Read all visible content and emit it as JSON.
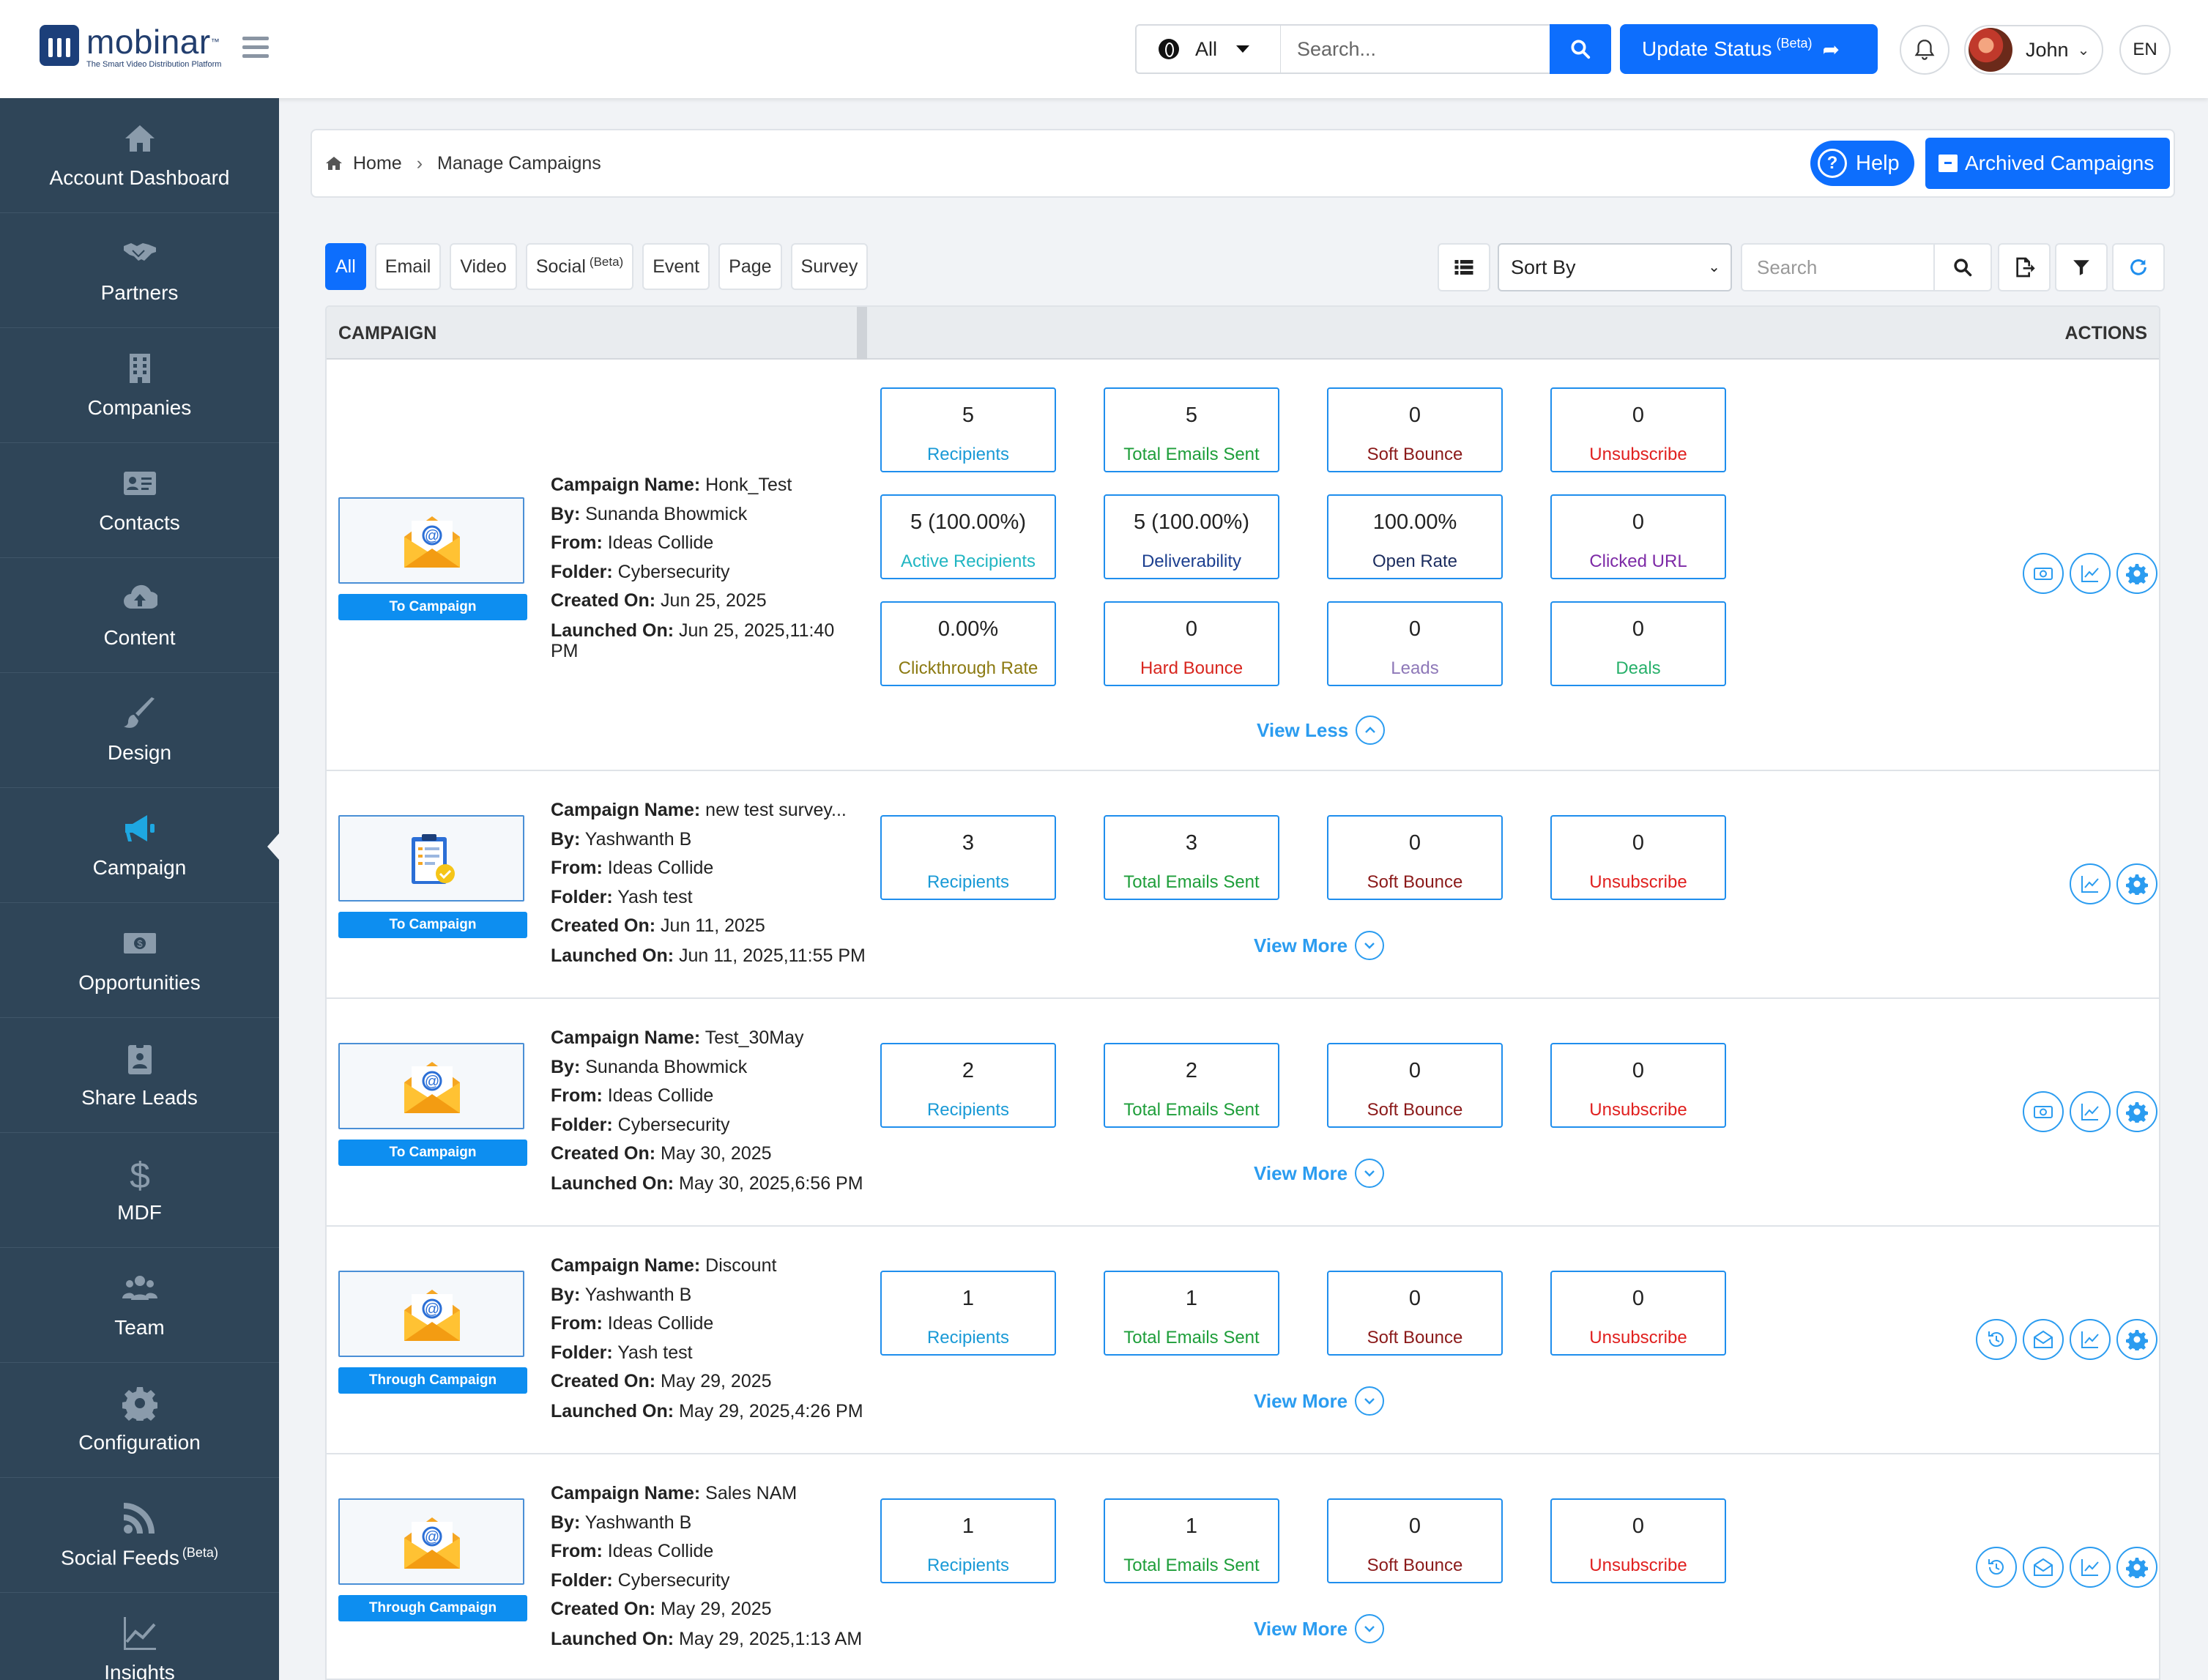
{
  "brand": {
    "name": "mobinar",
    "tm": "™",
    "tagline": "The Smart Video Distribution Platform"
  },
  "topbar": {
    "scope": "All",
    "search_placeholder": "Search...",
    "update_label": "Update Status",
    "update_badge": "(Beta)",
    "user_name": "John",
    "language": "EN"
  },
  "sidebar": {
    "items": [
      {
        "label": "Account Dashboard",
        "icon": "home-icon"
      },
      {
        "label": "Partners",
        "icon": "handshake-icon"
      },
      {
        "label": "Companies",
        "icon": "building-icon"
      },
      {
        "label": "Contacts",
        "icon": "contact-card-icon"
      },
      {
        "label": "Content",
        "icon": "cloud-upload-icon"
      },
      {
        "label": "Design",
        "icon": "brush-icon"
      },
      {
        "label": "Campaign",
        "icon": "megaphone-icon",
        "active": true
      },
      {
        "label": "Opportunities",
        "icon": "money-icon"
      },
      {
        "label": "Share Leads",
        "icon": "badge-icon"
      },
      {
        "label": "MDF",
        "icon": "dollar-icon"
      },
      {
        "label": "Team",
        "icon": "users-icon"
      },
      {
        "label": "Configuration",
        "icon": "gear-icon"
      },
      {
        "label": "Social Feeds",
        "badge": "(Beta)",
        "icon": "rss-icon"
      },
      {
        "label": "Insights",
        "icon": "chart-line-icon"
      }
    ]
  },
  "breadcrumb": {
    "home": "Home",
    "current": "Manage Campaigns"
  },
  "header_buttons": {
    "help": "Help",
    "archived": "Archived Campaigns"
  },
  "filters": {
    "tabs": [
      {
        "label": "All",
        "active": true
      },
      {
        "label": "Email"
      },
      {
        "label": "Video"
      },
      {
        "label": "Social",
        "badge": "(Beta)"
      },
      {
        "label": "Event"
      },
      {
        "label": "Page"
      },
      {
        "label": "Survey"
      }
    ],
    "sort_label": "Sort By",
    "search_placeholder": "Search"
  },
  "table": {
    "col_campaign": "CAMPAIGN",
    "col_actions": "ACTIONS",
    "field_labels": {
      "name": "Campaign Name:",
      "by": "By:",
      "from": "From:",
      "folder": "Folder:",
      "created": "Created On:",
      "launched": "Launched On:"
    },
    "metric_colors": {
      "Recipients": "#1a9ad6",
      "Total Emails Sent": "#1e9e3a",
      "Soft Bounce": "#8b1a1a",
      "Unsubscribe": "#e0201f",
      "Active Recipients": "#21b6c2",
      "Deliverability": "#1c3f8f",
      "Open Rate": "#1c2d5f",
      "Clicked URL": "#7d2aa6",
      "Clickthrough Rate": "#8c7a12",
      "Hard Bounce": "#d8261f",
      "Leads": "#8e78b8",
      "Deals": "#27b06a"
    },
    "rows": [
      {
        "kind": "email",
        "button": "To Campaign",
        "name": "Honk_Test",
        "by": "Sunanda Bhowmick",
        "from": "Ideas Collide",
        "folder": "Cybersecurity",
        "created": "Jun 25, 2025",
        "launched": "Jun 25, 2025,11:40 PM",
        "expanded": true,
        "toggle": "View Less",
        "metrics": [
          {
            "value": "5",
            "label": "Recipients"
          },
          {
            "value": "5",
            "label": "Total Emails Sent"
          },
          {
            "value": "0",
            "label": "Soft Bounce"
          },
          {
            "value": "0",
            "label": "Unsubscribe"
          },
          {
            "value": "5 (100.00%)",
            "label": "Active Recipients"
          },
          {
            "value": "5 (100.00%)",
            "label": "Deliverability"
          },
          {
            "value": "100.00%",
            "label": "Open Rate"
          },
          {
            "value": "0",
            "label": "Clicked URL"
          },
          {
            "value": "0.00%",
            "label": "Clickthrough Rate"
          },
          {
            "value": "0",
            "label": "Hard Bounce"
          },
          {
            "value": "0",
            "label": "Leads"
          },
          {
            "value": "0",
            "label": "Deals"
          }
        ],
        "actions": [
          "money-icon",
          "chart-icon",
          "gear-icon"
        ]
      },
      {
        "kind": "survey",
        "button": "To Campaign",
        "name": "new test survey...",
        "by": "Yashwanth B",
        "from": "Ideas Collide",
        "folder": "Yash test",
        "created": "Jun 11, 2025",
        "launched": "Jun 11, 2025,11:55 PM",
        "expanded": false,
        "toggle": "View More",
        "metrics": [
          {
            "value": "3",
            "label": "Recipients"
          },
          {
            "value": "3",
            "label": "Total Emails Sent"
          },
          {
            "value": "0",
            "label": "Soft Bounce"
          },
          {
            "value": "0",
            "label": "Unsubscribe"
          }
        ],
        "actions": [
          "chart-icon",
          "gear-icon"
        ]
      },
      {
        "kind": "email",
        "button": "To Campaign",
        "name": "Test_30May",
        "by": "Sunanda Bhowmick",
        "from": "Ideas Collide",
        "folder": "Cybersecurity",
        "created": "May 30, 2025",
        "launched": "May 30, 2025,6:56 PM",
        "expanded": false,
        "toggle": "View More",
        "metrics": [
          {
            "value": "2",
            "label": "Recipients"
          },
          {
            "value": "2",
            "label": "Total Emails Sent"
          },
          {
            "value": "0",
            "label": "Soft Bounce"
          },
          {
            "value": "0",
            "label": "Unsubscribe"
          }
        ],
        "actions": [
          "money-icon",
          "chart-icon",
          "gear-icon"
        ]
      },
      {
        "kind": "email",
        "button": "Through Campaign",
        "name": "Discount",
        "by": "Yashwanth B",
        "from": "Ideas Collide",
        "folder": "Yash test",
        "created": "May 29, 2025",
        "launched": "May 29, 2025,4:26 PM",
        "expanded": false,
        "toggle": "View More",
        "metrics": [
          {
            "value": "1",
            "label": "Recipients"
          },
          {
            "value": "1",
            "label": "Total Emails Sent"
          },
          {
            "value": "0",
            "label": "Soft Bounce"
          },
          {
            "value": "0",
            "label": "Unsubscribe"
          }
        ],
        "actions": [
          "history-icon",
          "envelope-open-icon",
          "chart-icon",
          "gear-icon"
        ]
      },
      {
        "kind": "email",
        "button": "Through Campaign",
        "name": "Sales NAM",
        "by": "Yashwanth B",
        "from": "Ideas Collide",
        "folder": "Cybersecurity",
        "created": "May 29, 2025",
        "launched": "May 29, 2025,1:13 AM",
        "expanded": false,
        "toggle": "View More",
        "metrics": [
          {
            "value": "1",
            "label": "Recipients"
          },
          {
            "value": "1",
            "label": "Total Emails Sent"
          },
          {
            "value": "0",
            "label": "Soft Bounce"
          },
          {
            "value": "0",
            "label": "Unsubscribe"
          }
        ],
        "actions": [
          "history-icon",
          "envelope-open-icon",
          "chart-icon",
          "gear-icon"
        ]
      }
    ]
  }
}
